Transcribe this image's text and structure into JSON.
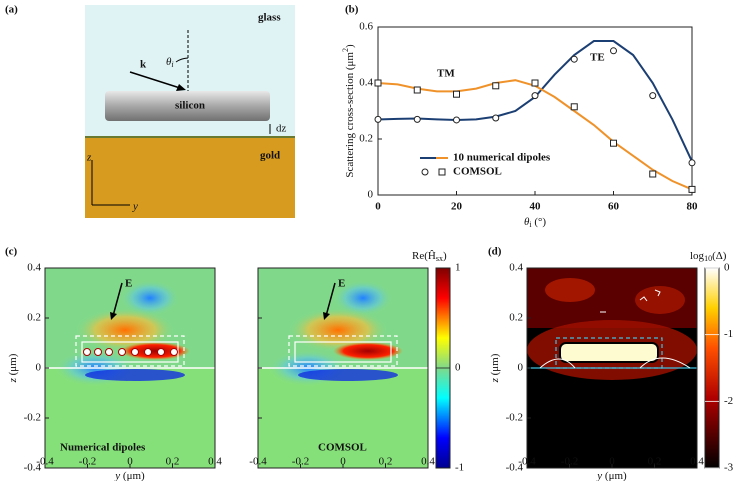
{
  "panel_a": {
    "label": "(a)",
    "glass": "glass",
    "silicon": "silicon",
    "gold": "gold",
    "k": "k",
    "theta": "θ",
    "theta_sub": "i",
    "dz": "dz",
    "z": "z",
    "y": "y"
  },
  "chart_data": {
    "type": "line",
    "label": "(b)",
    "xlabel": "θ",
    "xlabel_sub": "i",
    "xlabel_unit": " (°)",
    "ylabel": "Scattering cross-section (μm",
    "ylabel_sup": "2",
    "ylabel_end": ")",
    "xlim": [
      0,
      80
    ],
    "xticks": [
      0,
      20,
      40,
      60,
      80
    ],
    "ylim": [
      0,
      0.6
    ],
    "yticks": [
      0,
      0.2,
      0.4,
      0.6
    ],
    "x": [
      0,
      5,
      10,
      15,
      20,
      25,
      30,
      35,
      40,
      45,
      50,
      55,
      60,
      65,
      70,
      75,
      80
    ],
    "lines": [
      {
        "label": "TE",
        "color": "#1c3f73",
        "values": [
          0.27,
          0.272,
          0.273,
          0.27,
          0.268,
          0.27,
          0.28,
          0.3,
          0.35,
          0.43,
          0.5,
          0.55,
          0.55,
          0.5,
          0.4,
          0.27,
          0.12
        ]
      },
      {
        "label": "TM",
        "color": "#f0922a",
        "values": [
          0.4,
          0.395,
          0.38,
          0.37,
          0.37,
          0.38,
          0.4,
          0.41,
          0.39,
          0.35,
          0.3,
          0.25,
          0.19,
          0.14,
          0.09,
          0.05,
          0.02
        ]
      }
    ],
    "points": {
      "x": [
        0,
        10,
        20,
        30,
        40,
        50,
        60,
        70,
        80
      ],
      "TE": [
        0.27,
        0.27,
        0.268,
        0.275,
        0.355,
        0.485,
        0.515,
        0.355,
        0.115
      ],
      "TM": [
        0.4,
        0.375,
        0.36,
        0.39,
        0.4,
        0.315,
        0.185,
        0.075,
        0.02
      ]
    },
    "legend": {
      "line": "10 numerical dipoles",
      "points": "COMSOL"
    }
  },
  "panel_c": {
    "label": "(c)",
    "captions": [
      "Numerical dipoles",
      "COMSOL"
    ],
    "field_label": "E",
    "xlabel": "y",
    "xlabel_unit": " (μm)",
    "ylabel": "z",
    "ylabel_unit": " (μm)",
    "xlim": [
      -0.4,
      0.4
    ],
    "xticks": [
      -0.4,
      -0.2,
      0,
      0.2,
      0.4
    ],
    "ylim": [
      -0.4,
      0.4
    ],
    "yticks": [
      -0.4,
      -0.2,
      0,
      0.2,
      0.4
    ],
    "colorbar": {
      "title": "Re(Ĥ",
      "title_sub": "sx",
      "title_end": ")",
      "lim": [
        -1,
        1
      ],
      "ticks": [
        -1,
        0,
        1
      ]
    }
  },
  "panel_d": {
    "label": "(d)",
    "xlabel": "y",
    "xlabel_unit": " (μm)",
    "ylabel": "z",
    "ylabel_unit": " (μm)",
    "xlim": [
      -0.4,
      0.4
    ],
    "xticks": [
      -0.4,
      -0.2,
      0,
      0.2,
      0.4
    ],
    "ylim": [
      -0.4,
      0.4
    ],
    "yticks": [
      -0.4,
      -0.2,
      0,
      0.2,
      0.4
    ],
    "colorbar": {
      "title": "log",
      "title_sub": "10",
      "title_end": "(Δ)",
      "lim": [
        -3,
        0
      ],
      "ticks": [
        0,
        -1,
        -2,
        -3
      ]
    }
  }
}
